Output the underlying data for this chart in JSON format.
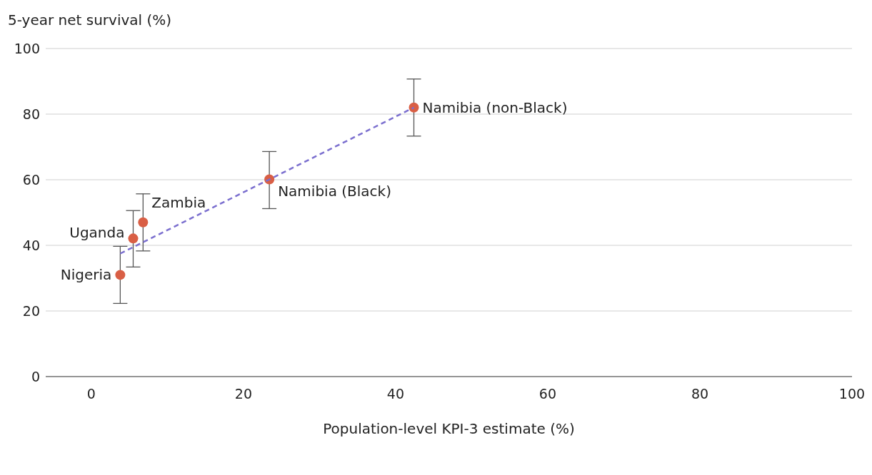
{
  "chart_data": {
    "type": "scatter",
    "xlabel": "Population-level KPI-3 estimate (%)",
    "ylabel": "5-year net survival (%)",
    "series": [
      {
        "color": "#d95f45",
        "x": [
          3.8,
          5.5,
          6.8,
          23.4,
          42.4
        ],
        "values": [
          31.0,
          42.1,
          47.0,
          60.1,
          82.0
        ],
        "errors": [
          [
            22.3,
            39.7
          ],
          [
            33.4,
            50.6
          ],
          [
            38.3,
            55.7
          ],
          [
            51.2,
            68.6
          ],
          [
            73.3,
            90.7
          ]
        ]
      },
      {
        "type": "line",
        "color": "#7b6fcf",
        "line_style": "dashed",
        "marker": "none",
        "x": [
          3.8,
          42.4
        ],
        "values": [
          37.5,
          82.0
        ]
      }
    ],
    "annotations": [
      {
        "text": "Nigeria",
        "x": 3.8,
        "y": 31.0
      },
      {
        "text": "Uganda",
        "x": 5.5,
        "y": 42.1
      },
      {
        "text": "Zambia",
        "x": 6.8,
        "y": 47.0
      },
      {
        "text": "Namibia (Black)",
        "x": 23.4,
        "y": 60.1
      },
      {
        "text": "Namibia (non-Black)",
        "x": 42.4,
        "y": 82.0
      }
    ],
    "xlim": [
      -6,
      100
    ],
    "xticks": [
      0,
      20,
      40,
      60,
      80,
      100
    ],
    "ylim": [
      0,
      100
    ],
    "yticks": [
      0,
      20,
      40,
      60,
      80,
      100
    ],
    "grid": "y",
    "marker": "circle",
    "legend": false
  }
}
